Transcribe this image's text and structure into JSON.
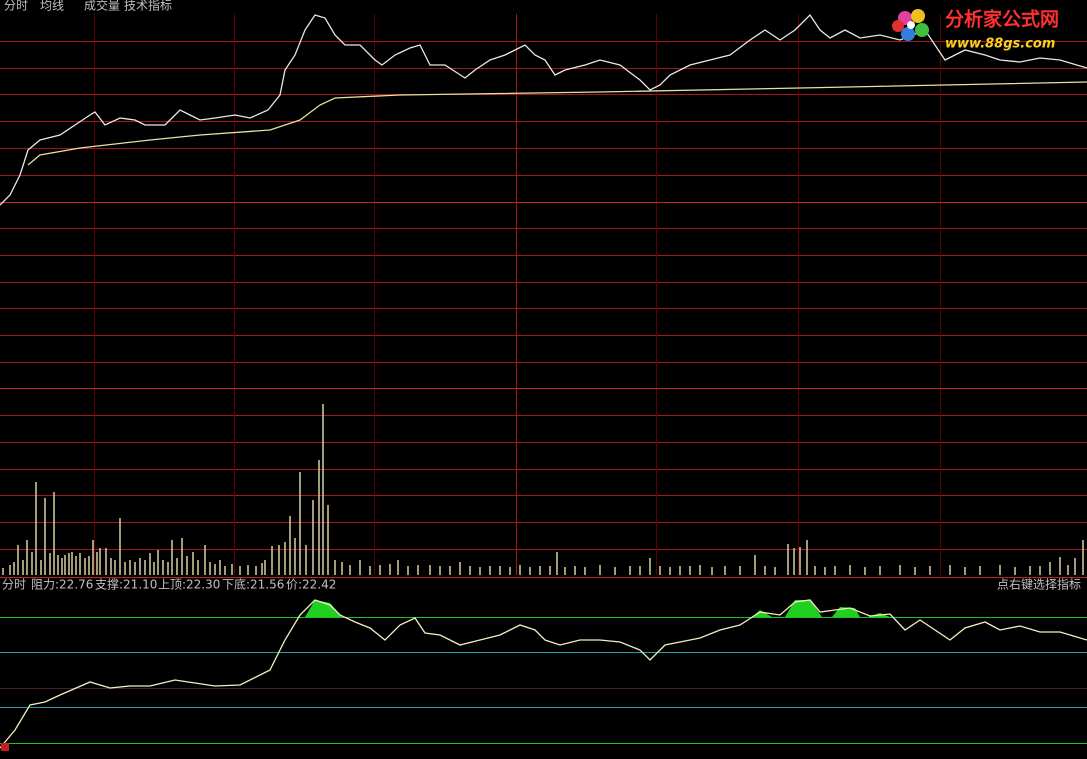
{
  "menu": [
    "分时",
    "均线",
    "成交量",
    "技术指标"
  ],
  "logo": {
    "title": "分析家公式网",
    "url": "www.88gs.com"
  },
  "indicator": {
    "items": [
      "分时",
      "阻力:22.76",
      "支撑:21.10",
      "上顶:22.30",
      "下底:21.56",
      "价:22.42"
    ],
    "hint": "点右键选择指标"
  }
}
